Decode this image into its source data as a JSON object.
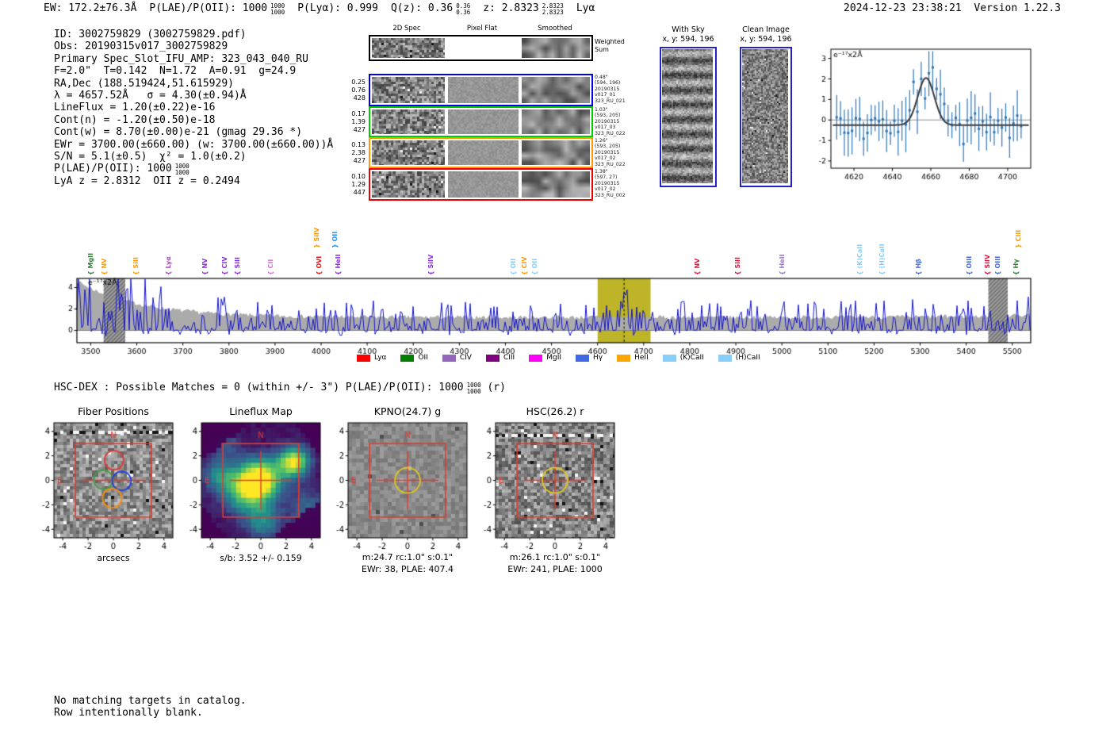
{
  "header": {
    "stats": [
      {
        "text": "EW: 172.2±76.3Å"
      },
      {
        "text": "P(LAE)/P(OII): 1000",
        "frac_top": "1000",
        "frac_bot": "1000"
      },
      {
        "text": "P(Lyα): 0.999"
      },
      {
        "text": "Q(z): 0.36",
        "frac_top": "0.36",
        "frac_bot": "0.36"
      },
      {
        "text": "z: 2.8323",
        "frac_top": "2.8323",
        "frac_bot": "2.8323"
      },
      {
        "text": "Lyα"
      }
    ],
    "timestamp": "2024-12-23 23:38:21",
    "version": "Version 1.22.3"
  },
  "info": {
    "lines": [
      {
        "text": "ID: 3002759829 (3002759829.pdf)"
      },
      {
        "text": "Obs: 20190315v017_3002759829"
      },
      {
        "text": "Primary Spec_Slot_IFU_AMP: 323_043_040_RU"
      },
      {
        "text": "F=2.0\"  T=0.142  N=1.72  A=0.91  g=24.9"
      },
      {
        "text": "RA,Dec (188.519424,51.615929)"
      },
      {
        "text": "λ = 4657.52Å   σ = 4.30(±0.94)Å"
      },
      {
        "text": "LineFlux = 1.20(±0.22)e-16"
      },
      {
        "text": "Cont(n) = -1.20(±0.50)e-18"
      },
      {
        "text": "Cont(w) = 8.70(±0.00)e-21 (gmag 29.36 *)"
      },
      {
        "text": "EWr = 3700.00(±660.00) (w: 3700.00(±660.00))Å"
      },
      {
        "text": "S/N = 5.1(±0.5)  χ² = 1.0(±0.2)"
      },
      {
        "text": "P(LAE)/P(OII): 1000",
        "frac_top": "1000",
        "frac_bot": "1000"
      },
      {
        "text": "LyA z = 2.8312  OII z = 0.2494"
      }
    ]
  },
  "spec2d": {
    "col_headers": [
      "2D Spec",
      "Pixel Flat",
      "Smoothed"
    ],
    "rows": [
      {
        "border": "#000000",
        "left": [],
        "right": [
          "Weighted",
          "Sum"
        ],
        "right_big": true
      },
      {
        "border": "#0000ee",
        "left": [
          "0.25",
          "0.76",
          "428"
        ],
        "right": [
          "0.48\"",
          "(594, 196)",
          "20190315",
          "v017_01",
          "323_RU_021"
        ]
      },
      {
        "border": "#00cc00",
        "left": [
          "0.17",
          "1.39",
          "427"
        ],
        "right": [
          "1.03\"",
          "(593, 205)",
          "20190315",
          "v017_03",
          "323_RU_022"
        ]
      },
      {
        "border": "#ff9900",
        "left": [
          "0.13",
          "2.38",
          "427"
        ],
        "right": [
          "1.26\"",
          "(593, 205)",
          "20190315",
          "v017_02",
          "323_RU_022"
        ]
      },
      {
        "border": "#ee0000",
        "left": [
          "0.10",
          "1.29",
          "447"
        ],
        "right": [
          "1.38\"",
          "(597, 27)",
          "20190315",
          "v017_02",
          "323_RU_002"
        ]
      }
    ]
  },
  "sky": {
    "with_sky": {
      "title": "With Sky",
      "coords": "x, y: 594, 196"
    },
    "clean": {
      "title": "Clean Image",
      "coords": "x, y: 594, 196"
    }
  },
  "hsc": {
    "text": "HSC-DEX : Possible Matches = 0 (within +/- 3\")  P(LAE)/P(OII): 1000",
    "frac_top": "1000",
    "frac_bot": "1000",
    "suffix": " (r)"
  },
  "footer": {
    "lines": [
      "No matching targets in catalog.",
      "Row intentionally blank."
    ]
  },
  "chart_data": [
    {
      "name": "line_fit_plot",
      "type": "scatter",
      "units_label": "e⁻¹⁷x2Å",
      "xlim": [
        4608,
        4712
      ],
      "x_ticks": [
        4620,
        4640,
        4660,
        4680,
        4700
      ],
      "ylim": [
        -2.35,
        3.45
      ],
      "y_ticks": [
        3,
        2,
        1,
        0,
        -1,
        -2
      ],
      "gaussian_fit": {
        "center": 4657.52,
        "sigma": 4.3,
        "peak": 2.05,
        "baseline": -0.25
      },
      "point_color": "#2e75b6",
      "curve_color": "#3a3a3a"
    },
    {
      "name": "full_spectrum",
      "type": "line",
      "units_label": "e⁻¹⁷x2Å",
      "xlim": [
        3470,
        5540
      ],
      "x_ticks": [
        3500,
        3600,
        3700,
        3800,
        3900,
        4000,
        4100,
        4200,
        4300,
        4400,
        4500,
        4600,
        4700,
        4800,
        4900,
        5000,
        5100,
        5200,
        5300,
        5400,
        5500
      ],
      "ylim": [
        -1.15,
        4.85
      ],
      "y_ticks": [
        0,
        2,
        4
      ],
      "spectrum_color": "#1414cc",
      "error_fill_color": "#ababab",
      "highlight_band": {
        "x0": 4600,
        "x1": 4715,
        "color": "#bdb427",
        "dashed_line_at": 4657.5
      },
      "masked_bands": [
        [
          3528,
          3575
        ],
        [
          5448,
          5490
        ]
      ],
      "emission_line_markers": [
        {
          "label": "MgII",
          "wave": 3500,
          "color": "#2e7d32"
        },
        {
          "label": "NV",
          "wave": 3528,
          "color": "#ff9900"
        },
        {
          "label": "SiII",
          "wave": 3597,
          "color": "#ff9900"
        },
        {
          "label": "Lyα",
          "wave": 3668,
          "color": "#ab47bc"
        },
        {
          "label": "NV",
          "wave": 3747,
          "color": "#8a2be2"
        },
        {
          "label": "CIV",
          "wave": 3790,
          "color": "#8a2be2"
        },
        {
          "label": "SiII",
          "wave": 3818,
          "color": "#8a2be2"
        },
        {
          "label": "CII",
          "wave": 3890,
          "color": "#da70d6"
        },
        {
          "label": "SiIV",
          "wave": 3989,
          "color": "#ff9900",
          "tall": true
        },
        {
          "label": "OVI",
          "wave": 3995,
          "color": "#ee1111"
        },
        {
          "label": "OII",
          "wave": 4029,
          "color": "#1e90ff",
          "tall": true
        },
        {
          "label": "HeII",
          "wave": 4036,
          "color": "#8a2be2"
        },
        {
          "label": "SiIV",
          "wave": 4237,
          "color": "#8a2be2"
        },
        {
          "label": "OII",
          "wave": 4417,
          "color": "#87cefa"
        },
        {
          "label": "CIV",
          "wave": 4440,
          "color": "#ff9900"
        },
        {
          "label": "OII",
          "wave": 4463,
          "color": "#87cefa"
        },
        {
          "label": "NV",
          "wave": 4816,
          "color": "#dc143c"
        },
        {
          "label": "SiII",
          "wave": 4904,
          "color": "#dc143c"
        },
        {
          "label": "HeII",
          "wave": 4999,
          "color": "#9575cd"
        },
        {
          "label": "(K)CaII",
          "wave": 5168,
          "color": "#87cefa"
        },
        {
          "label": "(H)CaII",
          "wave": 5216,
          "color": "#87cefa"
        },
        {
          "label": "Hβ",
          "wave": 5296,
          "color": "#4169e1"
        },
        {
          "label": "OIII",
          "wave": 5405,
          "color": "#4169e1"
        },
        {
          "label": "SiIV",
          "wave": 5445,
          "color": "#dc143c"
        },
        {
          "label": "OIII",
          "wave": 5468,
          "color": "#4169e1"
        },
        {
          "label": "Hγ",
          "wave": 5507,
          "color": "#2e7d32"
        },
        {
          "label": "CIII",
          "wave": 5512,
          "color": "#ff9900",
          "tall": true
        }
      ],
      "legend": [
        {
          "label": "Lyα",
          "color": "#ff0000"
        },
        {
          "label": "OII",
          "color": "#008000"
        },
        {
          "label": "CIV",
          "color": "#9467bd"
        },
        {
          "label": "CIII",
          "color": "#800080"
        },
        {
          "label": "MgII",
          "color": "#ff00ff"
        },
        {
          "label": "Hγ",
          "color": "#4169e1"
        },
        {
          "label": "HeII",
          "color": "#ffa500"
        },
        {
          "label": "(K)CaII",
          "color": "#87cefa"
        },
        {
          "label": "(H)CaII",
          "color": "#87cefa"
        }
      ]
    },
    {
      "name": "fiber_positions",
      "type": "image-cutout",
      "title": "Fiber Positions",
      "xlabel": "arcsecs",
      "x_ticks": [
        -4,
        -2,
        0,
        2,
        4
      ],
      "y_ticks": [
        4,
        2,
        0,
        -2,
        -4
      ],
      "lim": [
        -4.7,
        4.7
      ],
      "compass": {
        "north": "N",
        "east": "E"
      },
      "aperture_box": [
        -3,
        3
      ],
      "fibers": [
        {
          "color": "#e53935",
          "x": 0.05,
          "y": 1.65,
          "r": 0.75
        },
        {
          "color": "#43a047",
          "x": -0.8,
          "y": 0.05,
          "r": 0.75
        },
        {
          "color": "#1e3fe5",
          "x": 0.65,
          "y": -0.05,
          "r": 0.75
        },
        {
          "color": "#fb8c00",
          "x": -0.1,
          "y": -1.45,
          "r": 0.75
        }
      ]
    },
    {
      "name": "lineflux_map",
      "type": "heatmap",
      "title": "Lineflux Map",
      "xlabel": "s/b: 3.52 +/- 0.159",
      "x_ticks": [
        -4,
        -2,
        0,
        2,
        4
      ],
      "y_ticks": [
        4,
        2,
        0,
        -2,
        -4
      ],
      "lim": [
        -4.7,
        4.7
      ],
      "compass": {
        "north": "N",
        "east": "E"
      },
      "aperture_box": [
        -3,
        3
      ],
      "crosshair": true
    },
    {
      "name": "kpno_g_cutout",
      "type": "image-cutout",
      "title": "KPNO(24.7) g",
      "sub_labels": [
        "m:24.7 rc:1.0\"  s:0.1\"",
        "EWr: 38, PLAE: 407.4"
      ],
      "x_ticks": [
        -4,
        -2,
        0,
        2,
        4
      ],
      "y_ticks": [
        4,
        2,
        0,
        -2,
        -4
      ],
      "lim": [
        -4.7,
        4.7
      ],
      "compass": {
        "north": "N",
        "east": "E"
      },
      "aperture_box": [
        -3,
        3
      ],
      "crosshair": true,
      "aperture_circle": {
        "color": "#e6c619",
        "x": 0,
        "y": 0,
        "r": 1.0
      }
    },
    {
      "name": "hsc_r_cutout",
      "type": "image-cutout",
      "title": "HSC(26.2) r",
      "sub_labels": [
        "m:26.1 rc:1.0\"  s:0.1\"",
        "EWr: 241, PLAE: 1000"
      ],
      "x_ticks": [
        -4,
        -2,
        0,
        2,
        4
      ],
      "y_ticks": [
        4,
        2,
        0,
        -2,
        -4
      ],
      "lim": [
        -4.7,
        4.7
      ],
      "compass": {
        "north": "N",
        "east": "E"
      },
      "aperture_box": [
        -3,
        3
      ],
      "crosshair": true,
      "aperture_circle": {
        "color": "#e6c619",
        "x": 0,
        "y": 0,
        "r": 1.0
      }
    }
  ]
}
